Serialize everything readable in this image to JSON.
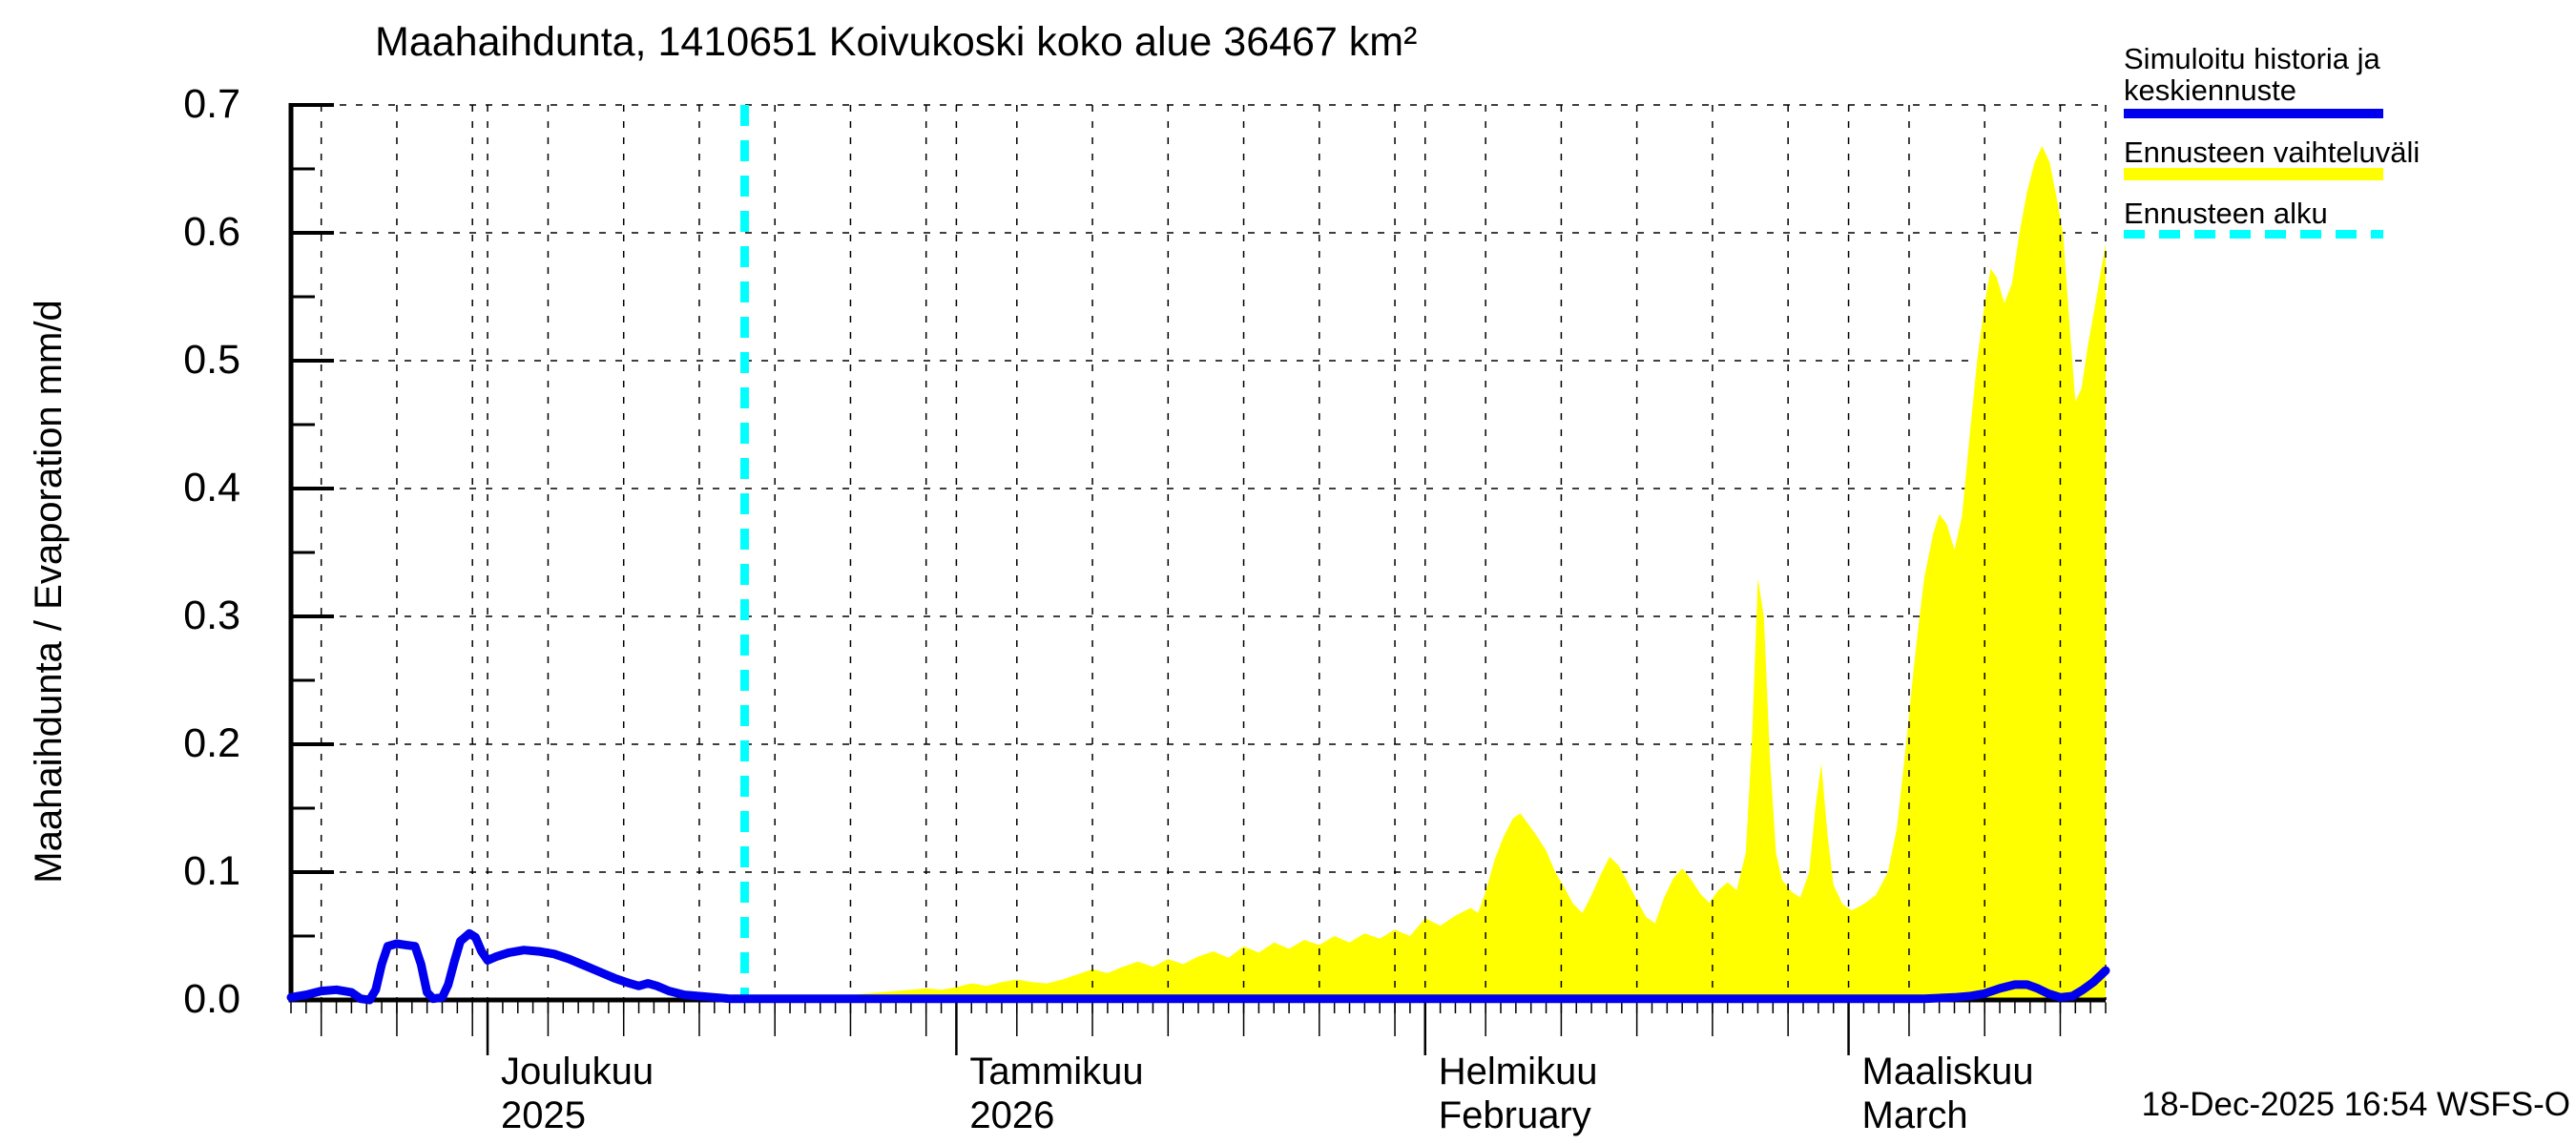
{
  "chart_data": {
    "type": "area+line",
    "title": "Maahaihdunta, 1410651 Koivukoski koko alue 36467 km²",
    "ylabel": "Maahaihdunta / Evaporation  mm/d",
    "timestamp": "18-Dec-2025 16:54 WSFS-O",
    "grid": true,
    "colors": {
      "history_line": "#0000EE",
      "forecast_range": "#FFFF00",
      "forecast_start": "#00FFFF",
      "grid": "#000000",
      "background": "#FFFFFF"
    },
    "y_axis": {
      "min": 0.0,
      "max": 0.7,
      "tick_step": 0.1,
      "tick_labels": [
        "0.0",
        "0.1",
        "0.2",
        "0.3",
        "0.4",
        "0.5",
        "0.6",
        "0.7"
      ],
      "unit": "mm/d"
    },
    "x_axis": {
      "start_date": "2025-11-18",
      "end_date": "2026-03-18",
      "total_days": 120,
      "months": [
        {
          "day": 13,
          "line1": "Joulukuu",
          "line2": "2025"
        },
        {
          "day": 44,
          "line1": "Tammikuu",
          "line2": "2026"
        },
        {
          "day": 75,
          "line1": "Helmikuu",
          "line2": "February"
        },
        {
          "day": 103,
          "line1": "Maaliskuu",
          "line2": "March"
        }
      ],
      "gridline_days": [
        2,
        7,
        12,
        13,
        17,
        22,
        27,
        32,
        37,
        42,
        44,
        48,
        53,
        58,
        63,
        68,
        73,
        75,
        79,
        84,
        89,
        94,
        99,
        103,
        107,
        112,
        117,
        120
      ],
      "medium_tick_days": [
        2,
        7,
        12,
        17,
        22,
        27,
        32,
        37,
        42,
        48,
        53,
        58,
        63,
        68,
        73,
        79,
        84,
        89,
        94,
        99,
        107,
        112,
        117
      ]
    },
    "forecast_start_day": 30,
    "series": [
      {
        "name": "Simuloitu historia ja keskiennuste",
        "type": "line",
        "color": "#0000EE",
        "points": [
          [
            0,
            0.002
          ],
          [
            1,
            0.004
          ],
          [
            2,
            0.007
          ],
          [
            3,
            0.008
          ],
          [
            4,
            0.006
          ],
          [
            4.6,
            0.001
          ],
          [
            5.2,
            0
          ],
          [
            5.6,
            0.008
          ],
          [
            6,
            0.028
          ],
          [
            6.4,
            0.042
          ],
          [
            7,
            0.044
          ],
          [
            7.6,
            0.043
          ],
          [
            8.2,
            0.042
          ],
          [
            8.6,
            0.028
          ],
          [
            9,
            0.006
          ],
          [
            9.4,
            0.001
          ],
          [
            10,
            0.002
          ],
          [
            10.4,
            0.012
          ],
          [
            10.8,
            0.03
          ],
          [
            11.2,
            0.046
          ],
          [
            11.8,
            0.052
          ],
          [
            12.2,
            0.049
          ],
          [
            12.6,
            0.038
          ],
          [
            13,
            0.031
          ],
          [
            13.6,
            0.034
          ],
          [
            14.4,
            0.037
          ],
          [
            15.4,
            0.039
          ],
          [
            16.4,
            0.038
          ],
          [
            17.4,
            0.036
          ],
          [
            18.4,
            0.032
          ],
          [
            19.4,
            0.027
          ],
          [
            20.4,
            0.022
          ],
          [
            21.4,
            0.017
          ],
          [
            22.4,
            0.013
          ],
          [
            23,
            0.011
          ],
          [
            23.6,
            0.013
          ],
          [
            24.2,
            0.011
          ],
          [
            25,
            0.007
          ],
          [
            26,
            0.004
          ],
          [
            27,
            0.003
          ],
          [
            28,
            0.002
          ],
          [
            29,
            0.001
          ],
          [
            30,
            0.001
          ],
          [
            40,
            0.001
          ],
          [
            60,
            0.001
          ],
          [
            80,
            0.001
          ],
          [
            100,
            0.001
          ],
          [
            108,
            0.001
          ],
          [
            110,
            0.002
          ],
          [
            111,
            0.003
          ],
          [
            112,
            0.005
          ],
          [
            113,
            0.009
          ],
          [
            114,
            0.012
          ],
          [
            114.8,
            0.012
          ],
          [
            115.5,
            0.009
          ],
          [
            116.2,
            0.005
          ],
          [
            117,
            0.002
          ],
          [
            117.8,
            0.003
          ],
          [
            118.5,
            0.008
          ],
          [
            119.2,
            0.014
          ],
          [
            120,
            0.023
          ]
        ]
      },
      {
        "name": "Ennusteen vaihteluväli",
        "type": "area",
        "color": "#FFFF00",
        "baseline": 0,
        "upper": [
          [
            30,
            0.001
          ],
          [
            33,
            0.002
          ],
          [
            36,
            0.003
          ],
          [
            38,
            0.005
          ],
          [
            40,
            0.007
          ],
          [
            42,
            0.009
          ],
          [
            43,
            0.008
          ],
          [
            44,
            0.01
          ],
          [
            45,
            0.013
          ],
          [
            46,
            0.011
          ],
          [
            47,
            0.014
          ],
          [
            48,
            0.016
          ],
          [
            49,
            0.014
          ],
          [
            50,
            0.013
          ],
          [
            51,
            0.016
          ],
          [
            52,
            0.02
          ],
          [
            53,
            0.024
          ],
          [
            54,
            0.021
          ],
          [
            55,
            0.026
          ],
          [
            56,
            0.03
          ],
          [
            57,
            0.026
          ],
          [
            58,
            0.032
          ],
          [
            59,
            0.028
          ],
          [
            60,
            0.034
          ],
          [
            61,
            0.038
          ],
          [
            62,
            0.033
          ],
          [
            63,
            0.042
          ],
          [
            64,
            0.037
          ],
          [
            65,
            0.045
          ],
          [
            66,
            0.04
          ],
          [
            67,
            0.047
          ],
          [
            68,
            0.043
          ],
          [
            69,
            0.05
          ],
          [
            70,
            0.045
          ],
          [
            71,
            0.052
          ],
          [
            72,
            0.048
          ],
          [
            73,
            0.055
          ],
          [
            74,
            0.05
          ],
          [
            75,
            0.064
          ],
          [
            76,
            0.058
          ],
          [
            77,
            0.066
          ],
          [
            78,
            0.072
          ],
          [
            78.5,
            0.068
          ],
          [
            79,
            0.085
          ],
          [
            79.6,
            0.11
          ],
          [
            80.2,
            0.128
          ],
          [
            80.8,
            0.142
          ],
          [
            81.3,
            0.146
          ],
          [
            81.8,
            0.138
          ],
          [
            82.4,
            0.128
          ],
          [
            83,
            0.117
          ],
          [
            83.6,
            0.1
          ],
          [
            84.2,
            0.088
          ],
          [
            84.8,
            0.075
          ],
          [
            85.4,
            0.068
          ],
          [
            86,
            0.082
          ],
          [
            86.6,
            0.098
          ],
          [
            87.2,
            0.112
          ],
          [
            87.8,
            0.105
          ],
          [
            88.4,
            0.092
          ],
          [
            89,
            0.078
          ],
          [
            89.6,
            0.065
          ],
          [
            90.2,
            0.06
          ],
          [
            90.8,
            0.08
          ],
          [
            91.4,
            0.095
          ],
          [
            92,
            0.103
          ],
          [
            92.6,
            0.094
          ],
          [
            93.2,
            0.083
          ],
          [
            93.8,
            0.076
          ],
          [
            94.4,
            0.086
          ],
          [
            95,
            0.092
          ],
          [
            95.6,
            0.086
          ],
          [
            96.2,
            0.115
          ],
          [
            96.6,
            0.2
          ],
          [
            97,
            0.33
          ],
          [
            97.4,
            0.3
          ],
          [
            97.8,
            0.19
          ],
          [
            98.2,
            0.115
          ],
          [
            98.6,
            0.094
          ],
          [
            99.2,
            0.085
          ],
          [
            99.8,
            0.08
          ],
          [
            100.4,
            0.1
          ],
          [
            100.8,
            0.15
          ],
          [
            101.2,
            0.185
          ],
          [
            101.6,
            0.13
          ],
          [
            102,
            0.09
          ],
          [
            102.6,
            0.075
          ],
          [
            103.2,
            0.07
          ],
          [
            104,
            0.075
          ],
          [
            104.8,
            0.082
          ],
          [
            105.6,
            0.1
          ],
          [
            106.2,
            0.135
          ],
          [
            106.8,
            0.2
          ],
          [
            107.4,
            0.27
          ],
          [
            108,
            0.33
          ],
          [
            108.6,
            0.365
          ],
          [
            109,
            0.38
          ],
          [
            109.5,
            0.372
          ],
          [
            110,
            0.352
          ],
          [
            110.5,
            0.378
          ],
          [
            111,
            0.44
          ],
          [
            111.5,
            0.5
          ],
          [
            112,
            0.545
          ],
          [
            112.4,
            0.572
          ],
          [
            112.8,
            0.565
          ],
          [
            113.3,
            0.545
          ],
          [
            113.8,
            0.56
          ],
          [
            114.3,
            0.6
          ],
          [
            114.8,
            0.632
          ],
          [
            115.3,
            0.655
          ],
          [
            115.8,
            0.668
          ],
          [
            116.3,
            0.655
          ],
          [
            116.8,
            0.625
          ],
          [
            117.2,
            0.598
          ],
          [
            117.6,
            0.53
          ],
          [
            118,
            0.468
          ],
          [
            118.4,
            0.478
          ],
          [
            118.8,
            0.51
          ],
          [
            119.4,
            0.55
          ],
          [
            120,
            0.592
          ]
        ]
      },
      {
        "name": "Ennusteen alku",
        "type": "vline",
        "color": "#00FFFF",
        "day": 30
      }
    ],
    "legend": {
      "position": "top-right",
      "items": [
        {
          "lines": [
            "Simuloitu historia ja",
            "keskiennuste"
          ],
          "color": "#0000EE",
          "style": "solid"
        },
        {
          "lines": [
            "Ennusteen vaihteluväli"
          ],
          "color": "#FFFF00",
          "style": "solid-thick"
        },
        {
          "lines": [
            "Ennusteen alku"
          ],
          "color": "#00FFFF",
          "style": "dashed"
        }
      ]
    }
  }
}
